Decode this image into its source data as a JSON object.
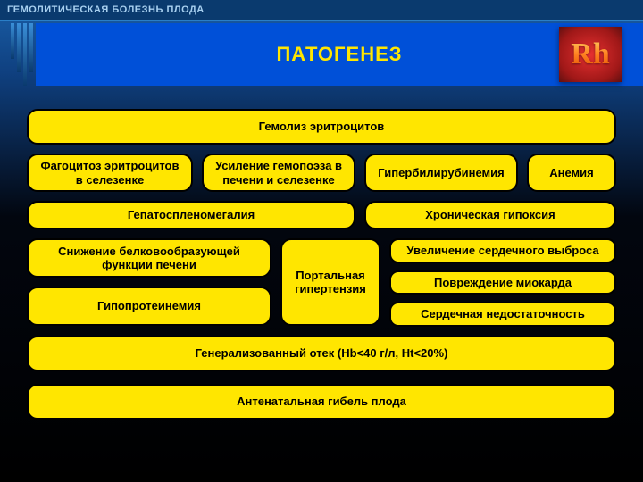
{
  "header": {
    "subtitle": "ГЕМОЛИТИЧЕСКАЯ БОЛЕЗНЬ ПЛОДА",
    "title": "ПАТОГЕНЕЗ",
    "badge": "Rh"
  },
  "colors": {
    "background_top": "#1a5fa8",
    "background_bottom": "#000000",
    "title_bg": "#0050d8",
    "title_text": "#ffe600",
    "box_bg": "#ffe600",
    "box_border": "#000000",
    "box_text": "#000000",
    "badge_bg": "#c82020",
    "badge_text_gradient_top": "#ffd060",
    "badge_text_gradient_bottom": "#e05000",
    "header_text": "#a8d0f0"
  },
  "layout": {
    "type": "flowchart",
    "box_border_radius": 12,
    "box_border_width": 2,
    "font_size": 13,
    "font_weight": "bold",
    "row_gap": 10,
    "col_gap": 10
  },
  "boxes": {
    "r1": "Гемолиз эритроцитов",
    "r2_1": "Фагоцитоз эритроцитов в селезенке",
    "r2_2": "Усиление гемопоэза в печени и селезенке",
    "r2_3": "Гипербилирубинемия",
    "r2_4": "Анемия",
    "r3_1": "Гепатоспленомегалия",
    "r3_2": "Хроническая гипоксия",
    "r4_left1": "Снижение белковообразующей функции печени",
    "r4_left2": "Гипопротеинемия",
    "r4_mid": "Портальная гипертензия",
    "r4_right1": "Увеличение сердечного выброса",
    "r4_right2": "Повреждение миокарда",
    "r4_right3": "Сердечная недостаточность",
    "r5": "Генерализованный отек (Hb<40 г/л, Ht<20%)",
    "r6": "Антенатальная гибель плода"
  }
}
